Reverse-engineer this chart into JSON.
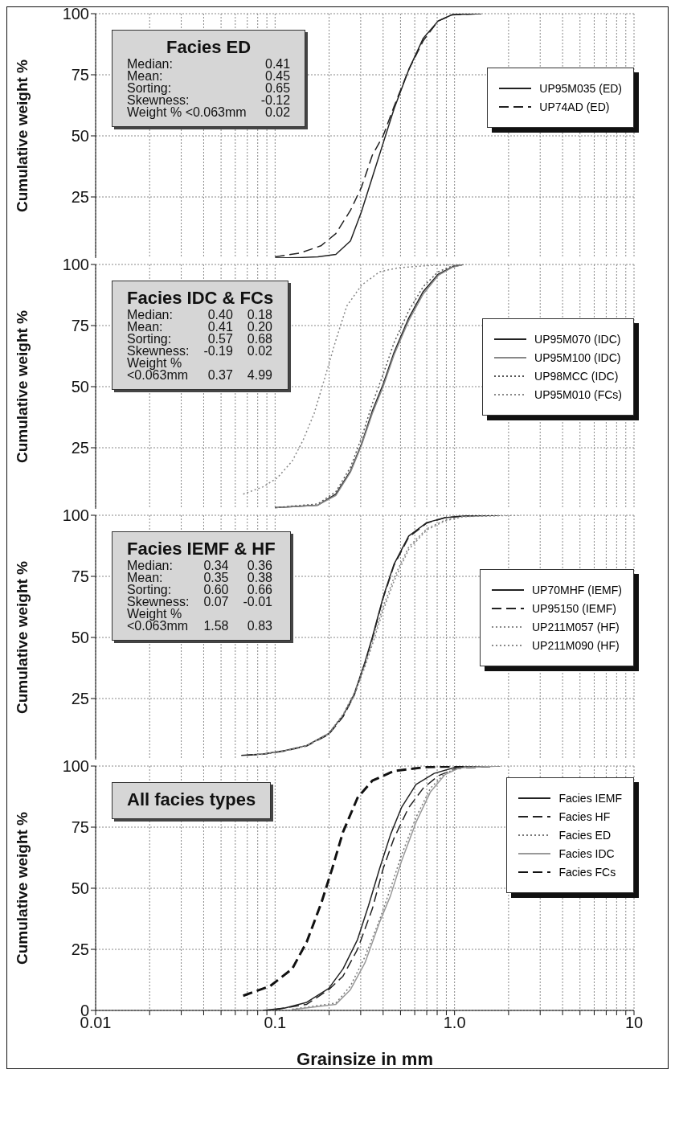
{
  "chart_data": [
    {
      "type": "line",
      "title": "Facies ED",
      "annotations": [
        "Median:\t0.41",
        "Mean:\t0.45",
        "Sorting:\t0.65",
        "Skewness:\t-0.12",
        "Weight % <0.063mm\t0.02"
      ],
      "ylabel": "Cumulative weight %",
      "log": "x",
      "xlim": [
        0.01,
        10
      ],
      "xticks": [
        0.01,
        0.02,
        0.03,
        0.04,
        0.05,
        0.06,
        0.07,
        0.08,
        0.09,
        0.1,
        0.2,
        0.3,
        0.4,
        0.5,
        0.6,
        0.7,
        0.8,
        0.9,
        1,
        2,
        3,
        4,
        5,
        6,
        7,
        8,
        9,
        10
      ],
      "ylim": [
        0,
        100
      ],
      "yticks": [
        25,
        50,
        75,
        100
      ],
      "tick_labels": "y",
      "grid": true,
      "legend": "right",
      "series": [
        {
          "name": "UP95M035 (ED)",
          "color": "#222222",
          "line_style": "solid",
          "x": [
            0.1,
            0.137,
            0.173,
            0.218,
            0.263,
            0.303,
            0.348,
            0.4,
            0.46,
            0.555,
            0.67,
            0.81,
            0.97,
            1.41
          ],
          "values": [
            0,
            0.2,
            0.5,
            1.5,
            7,
            19,
            33,
            47,
            61,
            77,
            90,
            97,
            99.6,
            100
          ]
        },
        {
          "name": "UP74AD (ED)",
          "color": "#222222",
          "line_style": "dashed",
          "x": [
            0.1,
            0.137,
            0.18,
            0.218,
            0.263,
            0.303,
            0.348,
            0.4,
            0.46,
            0.555,
            0.67,
            0.81,
            0.97,
            1.41
          ],
          "values": [
            0.5,
            2,
            5,
            10,
            19.5,
            29,
            42,
            50,
            62,
            77,
            89,
            97,
            99.5,
            100
          ]
        }
      ]
    },
    {
      "type": "line",
      "title": "Facies IDC & FCs",
      "annotations": [
        "Median:\t0.40\t0.18",
        "Mean:\t0.41\t0.20",
        "Sorting:\t0.57\t0.68",
        "Skewness:\t-0.19\t0.02",
        "Weight %",
        "<0.063mm\t0.37\t4.99"
      ],
      "ylabel": "Cumulative weight %",
      "log": "x",
      "xlim": [
        0.01,
        10
      ],
      "xticks": [
        0.01,
        0.02,
        0.03,
        0.04,
        0.05,
        0.06,
        0.07,
        0.08,
        0.09,
        0.1,
        0.2,
        0.3,
        0.4,
        0.5,
        0.6,
        0.7,
        0.8,
        0.9,
        1,
        2,
        3,
        4,
        5,
        6,
        7,
        8,
        9,
        10
      ],
      "ylim": [
        0,
        100
      ],
      "yticks": [
        25,
        50,
        75,
        100
      ],
      "tick_labels": "y",
      "grid": true,
      "legend": "right",
      "series": [
        {
          "name": "UP95M070 (IDC)",
          "color": "#222222",
          "line_style": "solid",
          "x": [
            0.1,
            0.173,
            0.218,
            0.263,
            0.303,
            0.348,
            0.4,
            0.46,
            0.555,
            0.67,
            0.81,
            0.97,
            1.12
          ],
          "values": [
            0.5,
            1.5,
            6,
            15.5,
            26.5,
            40,
            51,
            64,
            78,
            89,
            96,
            99,
            100
          ]
        },
        {
          "name": "UP95M100 (IDC)",
          "color": "#888888",
          "line_style": "solid",
          "x": [
            0.1,
            0.173,
            0.218,
            0.263,
            0.303,
            0.348,
            0.4,
            0.46,
            0.555,
            0.67,
            0.81,
            0.97,
            1.12
          ],
          "values": [
            0.5,
            1.5,
            5.5,
            15,
            26,
            39,
            50,
            63,
            77,
            88,
            95.5,
            98.8,
            100
          ]
        },
        {
          "name": "UP98MCC (IDC)",
          "color": "#555555",
          "line_style": "dotted",
          "x": [
            0.1,
            0.173,
            0.218,
            0.263,
            0.303,
            0.348,
            0.4,
            0.46,
            0.555,
            0.67,
            0.81,
            0.97,
            1.12
          ],
          "values": [
            0.5,
            2,
            7,
            17,
            29,
            43,
            55,
            68,
            81,
            91,
            97,
            99.4,
            100
          ]
        },
        {
          "name": "UP95M010 (FCs)",
          "color": "#888888",
          "line_style": "dotted",
          "x": [
            0.0664,
            0.0857,
            0.103,
            0.1245,
            0.143,
            0.165,
            0.19,
            0.218,
            0.251,
            0.303,
            0.382,
            0.483,
            0.7,
            1.12
          ],
          "values": [
            6,
            9,
            12.7,
            19.5,
            28,
            39,
            54,
            69,
            83,
            91.5,
            97,
            98.6,
            99.5,
            100
          ]
        }
      ]
    },
    {
      "type": "line",
      "title": "Facies IEMF & HF",
      "annotations": [
        "Median:\t0.34\t0.36",
        "Mean:\t0.35\t0.38",
        "Sorting:\t0.60\t0.66",
        "Skewness:\t0.07\t-0.01",
        "Weight %",
        "<0.063mm\t1.58\t0.83"
      ],
      "ylabel": "Cumulative weight %",
      "log": "x",
      "xlim": [
        0.01,
        10
      ],
      "xticks": [
        0.01,
        0.02,
        0.03,
        0.04,
        0.05,
        0.06,
        0.07,
        0.08,
        0.09,
        0.1,
        0.2,
        0.3,
        0.4,
        0.5,
        0.6,
        0.7,
        0.8,
        0.9,
        1,
        2,
        3,
        4,
        5,
        6,
        7,
        8,
        9,
        10
      ],
      "ylim": [
        0,
        100
      ],
      "yticks": [
        25,
        50,
        75,
        100
      ],
      "tick_labels": "y",
      "grid": true,
      "legend": "right",
      "series": [
        {
          "name": "UP70MHF (IEMF)",
          "color": "#222222",
          "line_style": "solid",
          "x": [
            0.0648,
            0.0857,
            0.1135,
            0.15,
            0.199,
            0.239,
            0.275,
            0.317,
            0.348,
            0.4,
            0.46,
            0.555,
            0.7,
            0.885,
            1.12,
            1.79
          ],
          "values": [
            1.7,
            2.3,
            3.7,
            5.8,
            10.6,
            18,
            26.5,
            40,
            50,
            66.5,
            80,
            91.5,
            97,
            99,
            99.7,
            100
          ]
        },
        {
          "name": "UP95150  (IEMF)",
          "color": "#222222",
          "line_style": "dashed",
          "x": [
            0.07,
            0.0857,
            0.1135,
            0.15,
            0.199,
            0.239,
            0.275,
            0.317,
            0.348,
            0.4,
            0.46,
            0.555,
            0.7,
            0.885,
            1.12,
            1.5
          ],
          "values": [
            1.8,
            2.2,
            3.5,
            5.6,
            10.3,
            17.5,
            26,
            39.5,
            49.5,
            66,
            79.5,
            91,
            96.8,
            99,
            99.7,
            100
          ]
        },
        {
          "name": "UP211M057 (HF)",
          "color": "#888888",
          "line_style": "dotted",
          "x": [
            0.075,
            0.0857,
            0.1135,
            0.15,
            0.199,
            0.239,
            0.275,
            0.317,
            0.348,
            0.4,
            0.46,
            0.555,
            0.7,
            0.885,
            1.12,
            2.0
          ],
          "values": [
            2,
            2.2,
            3.5,
            5.6,
            10.5,
            18,
            26,
            38,
            47,
            61,
            73,
            86,
            94,
            97.7,
            99.4,
            100
          ]
        },
        {
          "name": "UP211M090 (HF)",
          "color": "#888888",
          "line_style": "dotted",
          "x": [
            0.08,
            0.0857,
            0.1135,
            0.15,
            0.199,
            0.239,
            0.275,
            0.317,
            0.348,
            0.4,
            0.46,
            0.555,
            0.7,
            0.885,
            1.12,
            2.3
          ],
          "values": [
            2.2,
            2.3,
            3.6,
            5.8,
            10.8,
            18.5,
            27,
            39,
            48.5,
            62.5,
            74.5,
            87,
            94.5,
            98,
            99.5,
            100
          ]
        }
      ]
    },
    {
      "type": "line",
      "title": "All facies types",
      "xlabel": "Grainsize in mm",
      "ylabel": "Cumulative weight %",
      "log": "x",
      "xlim": [
        0.01,
        10
      ],
      "xticks": [
        0.01,
        {
          "value": 0.02,
          "label": null
        },
        {
          "value": 0.03,
          "label": null
        },
        {
          "value": 0.04,
          "label": null
        },
        {
          "value": 0.05,
          "label": null
        },
        {
          "value": 0.06,
          "label": null
        },
        {
          "value": 0.07,
          "label": null
        },
        {
          "value": 0.08,
          "label": null
        },
        {
          "value": 0.09,
          "label": null
        },
        0.1,
        {
          "value": 0.2,
          "label": null
        },
        {
          "value": 0.3,
          "label": null
        },
        {
          "value": 0.4,
          "label": null
        },
        {
          "value": 0.5,
          "label": null
        },
        {
          "value": 0.6,
          "label": null
        },
        {
          "value": 0.7,
          "label": null
        },
        {
          "value": 0.8,
          "label": null
        },
        {
          "value": 0.9,
          "label": null
        },
        {
          "value": 1,
          "label": "1.0"
        },
        {
          "value": 2,
          "label": null
        },
        {
          "value": 3,
          "label": null
        },
        {
          "value": 4,
          "label": null
        },
        {
          "value": 5,
          "label": null
        },
        {
          "value": 6,
          "label": null
        },
        {
          "value": 7,
          "label": null
        },
        {
          "value": 8,
          "label": null
        },
        {
          "value": 9,
          "label": null
        },
        10
      ],
      "ylim": [
        0,
        100
      ],
      "yticks": [
        0,
        25,
        50,
        75,
        100
      ],
      "grid": true,
      "legend": "top right",
      "series": [
        {
          "name": "Facies IEMF",
          "color": "#222222",
          "line_style": "solid",
          "x": [
            0.0857,
            0.1135,
            0.15,
            0.199,
            0.239,
            0.288,
            0.332,
            0.382,
            0.44,
            0.506,
            0.61,
            0.77,
            1.02,
            1.79
          ],
          "values": [
            0,
            1,
            3.3,
            9,
            17,
            29,
            43,
            58,
            72,
            83,
            92.5,
            97,
            99.6,
            100
          ]
        },
        {
          "name": "Facies HF",
          "color": "#222222",
          "line_style": "dashed",
          "x": [
            0.1,
            0.15,
            0.199,
            0.239,
            0.288,
            0.348,
            0.4,
            0.46,
            0.555,
            0.67,
            0.81,
            1.02,
            1.79
          ],
          "values": [
            0.3,
            2.5,
            8.5,
            14,
            25,
            41.5,
            58,
            70.5,
            83,
            91,
            96,
            99,
            100
          ]
        },
        {
          "name": "Facies ED",
          "color": "#777777",
          "line_style": "dotted",
          "x": [
            0.1245,
            0.218,
            0.263,
            0.317,
            0.382,
            0.44,
            0.506,
            0.61,
            0.735,
            0.885,
            1.07,
            1.79
          ],
          "values": [
            0.5,
            3,
            10,
            22,
            37,
            50,
            63.5,
            79,
            91,
            97,
            99.6,
            100
          ]
        },
        {
          "name": "Facies IDC",
          "color": "#999999",
          "line_style": "solid",
          "x": [
            0.1245,
            0.218,
            0.263,
            0.317,
            0.382,
            0.44,
            0.506,
            0.61,
            0.735,
            0.885,
            1.07,
            1.79
          ],
          "values": [
            0.3,
            2.5,
            8.5,
            19.5,
            36,
            47,
            61,
            77,
            89.5,
            96.5,
            99.3,
            100
          ]
        },
        {
          "name": "Facies FCs",
          "color": "#111111",
          "line_style": "dashed",
          "x": [
            0.0664,
            0.094,
            0.1245,
            0.15,
            0.181,
            0.208,
            0.239,
            0.288,
            0.348,
            0.46,
            0.7,
            1.12
          ],
          "values": [
            6,
            10,
            17,
            28,
            44,
            58,
            73,
            87,
            94,
            98,
            99.6,
            100
          ]
        }
      ]
    }
  ]
}
